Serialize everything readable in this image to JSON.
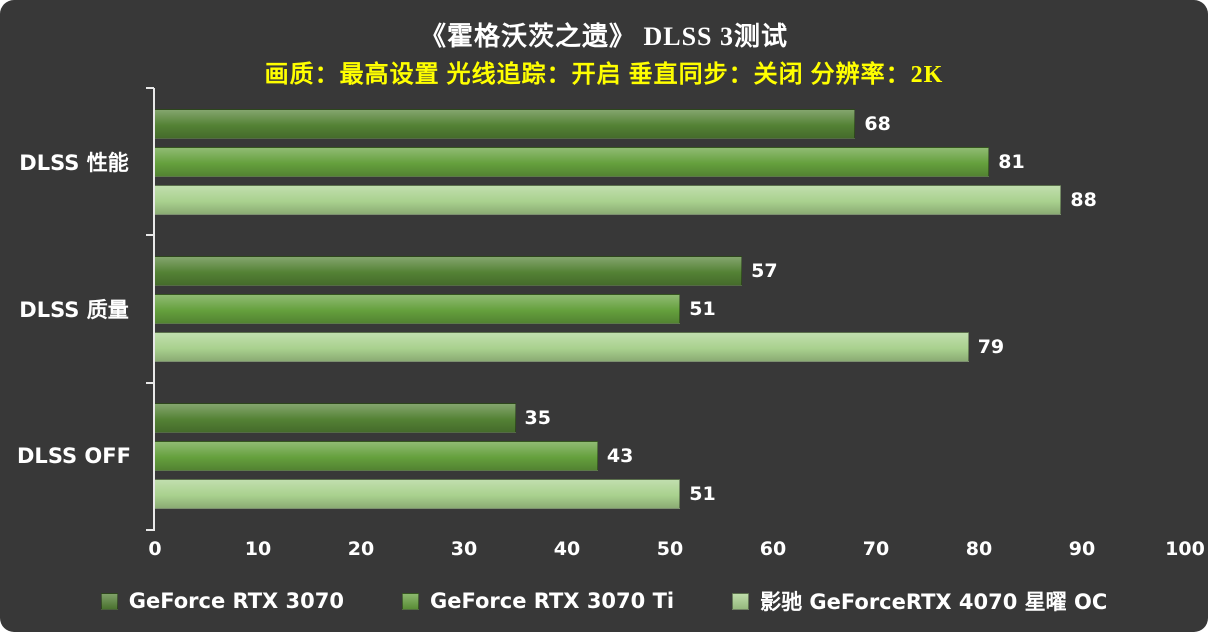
{
  "title": "《霍格沃茨之遗》 DLSS 3测试",
  "subtitle": "画质：最高设置 光线追踪：开启 垂直同步：关闭 分辨率：2K",
  "colors": {
    "background": "#383838",
    "title_text": "#ffffff",
    "subtitle_text": "#ffff00",
    "axis": "#e8e8e8",
    "label_text": "#ffffff"
  },
  "chart_data": {
    "type": "bar",
    "orientation": "horizontal",
    "title": "《霍格沃茨之遗》 DLSS 3测试",
    "subtitle": "画质：最高设置 光线追踪：开启 垂直同步：关闭 分辨率：2K",
    "categories": [
      "DLSS 性能",
      "DLSS 质量",
      "DLSS OFF"
    ],
    "series": [
      {
        "name": "GeForce RTX 3070",
        "color": "#548235",
        "values": [
          68,
          57,
          35
        ]
      },
      {
        "name": "GeForce RTX 3070 Ti",
        "color": "#65a03d",
        "values": [
          81,
          51,
          43
        ]
      },
      {
        "name": "影驰 GeForceRTX 4070 星曜 OC",
        "color": "#a9d18e",
        "values": [
          88,
          79,
          51
        ]
      }
    ],
    "xlabel": "",
    "ylabel": "",
    "xlim": [
      0,
      100
    ],
    "xticks": [
      0,
      10,
      20,
      30,
      40,
      50,
      60,
      70,
      80,
      90,
      100
    ],
    "grid": false,
    "legend_position": "bottom",
    "value_labels": true
  }
}
